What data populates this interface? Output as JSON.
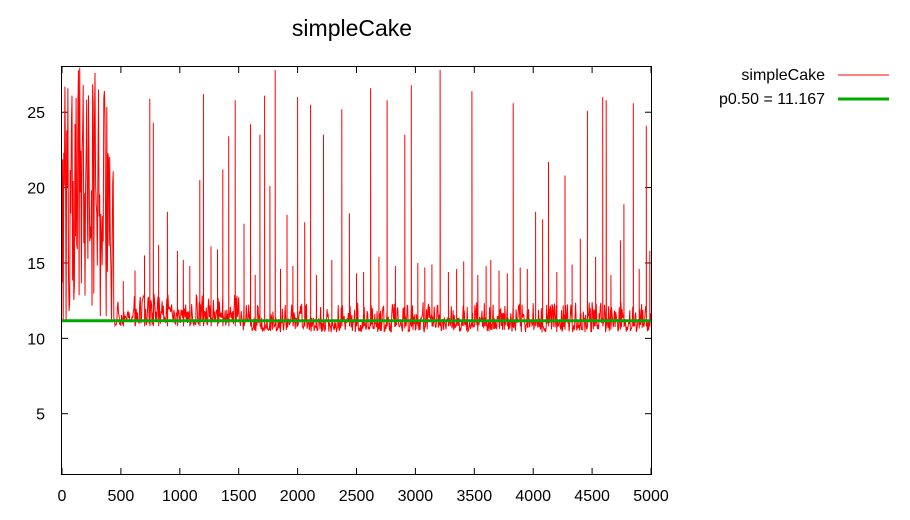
{
  "chart_data": {
    "type": "line",
    "title": "simpleCake",
    "xlabel": "",
    "ylabel": "",
    "xlim": [
      0,
      5000
    ],
    "ylim": [
      1,
      28
    ],
    "x_ticks": [
      0,
      500,
      1000,
      1500,
      2000,
      2500,
      3000,
      3500,
      4000,
      4500,
      5000
    ],
    "y_ticks": [
      5,
      10,
      15,
      20,
      25
    ],
    "grid": false,
    "legend_position": "outside-top-right",
    "series": [
      {
        "name": "simpleCake",
        "color": "#ff0000",
        "style": "noisy line",
        "base_segments": [
          {
            "x_start": 0,
            "x_end": 440,
            "low": 11,
            "high": 28
          },
          {
            "x_start": 440,
            "x_end": 1500,
            "low": 10.8,
            "high": 13
          },
          {
            "x_start": 1500,
            "x_end": 5000,
            "low": 10.4,
            "high": 12.4
          }
        ],
        "spikes": [
          {
            "x": 520,
            "y": 13.8
          },
          {
            "x": 620,
            "y": 14.5
          },
          {
            "x": 700,
            "y": 15.5
          },
          {
            "x": 745,
            "y": 25.9
          },
          {
            "x": 775,
            "y": 24.3
          },
          {
            "x": 820,
            "y": 16.2
          },
          {
            "x": 895,
            "y": 18.4
          },
          {
            "x": 980,
            "y": 15.8
          },
          {
            "x": 1030,
            "y": 15.2
          },
          {
            "x": 1085,
            "y": 14.8
          },
          {
            "x": 1170,
            "y": 20.5
          },
          {
            "x": 1200,
            "y": 26.2
          },
          {
            "x": 1265,
            "y": 16.1
          },
          {
            "x": 1320,
            "y": 15.9
          },
          {
            "x": 1365,
            "y": 21.2
          },
          {
            "x": 1415,
            "y": 23.4
          },
          {
            "x": 1470,
            "y": 25.8
          },
          {
            "x": 1545,
            "y": 17.6
          },
          {
            "x": 1600,
            "y": 24.2
          },
          {
            "x": 1640,
            "y": 14.2
          },
          {
            "x": 1680,
            "y": 23.5
          },
          {
            "x": 1720,
            "y": 26.1
          },
          {
            "x": 1765,
            "y": 20.1
          },
          {
            "x": 1810,
            "y": 27.8
          },
          {
            "x": 1855,
            "y": 14.6
          },
          {
            "x": 1910,
            "y": 18.2
          },
          {
            "x": 1960,
            "y": 14.8
          },
          {
            "x": 2000,
            "y": 26.0
          },
          {
            "x": 2060,
            "y": 17.7
          },
          {
            "x": 2110,
            "y": 25.5
          },
          {
            "x": 2160,
            "y": 14.2
          },
          {
            "x": 2220,
            "y": 23.5
          },
          {
            "x": 2290,
            "y": 15.2
          },
          {
            "x": 2375,
            "y": 25.2
          },
          {
            "x": 2440,
            "y": 18.3
          },
          {
            "x": 2500,
            "y": 14.3
          },
          {
            "x": 2560,
            "y": 14.4
          },
          {
            "x": 2620,
            "y": 26.6
          },
          {
            "x": 2690,
            "y": 15.4
          },
          {
            "x": 2760,
            "y": 25.8
          },
          {
            "x": 2830,
            "y": 14.8
          },
          {
            "x": 2910,
            "y": 23.5
          },
          {
            "x": 2965,
            "y": 26.8
          },
          {
            "x": 3020,
            "y": 15.0
          },
          {
            "x": 3080,
            "y": 14.7
          },
          {
            "x": 3140,
            "y": 14.9
          },
          {
            "x": 3210,
            "y": 27.8
          },
          {
            "x": 3280,
            "y": 14.4
          },
          {
            "x": 3350,
            "y": 14.6
          },
          {
            "x": 3410,
            "y": 15.1
          },
          {
            "x": 3480,
            "y": 26.4
          },
          {
            "x": 3530,
            "y": 14.2
          },
          {
            "x": 3600,
            "y": 14.8
          },
          {
            "x": 3640,
            "y": 15.2
          },
          {
            "x": 3710,
            "y": 14.5
          },
          {
            "x": 3780,
            "y": 14.3
          },
          {
            "x": 3830,
            "y": 25.6
          },
          {
            "x": 3890,
            "y": 14.7
          },
          {
            "x": 3950,
            "y": 14.6
          },
          {
            "x": 4020,
            "y": 18.4
          },
          {
            "x": 4080,
            "y": 17.9
          },
          {
            "x": 4130,
            "y": 21.7
          },
          {
            "x": 4200,
            "y": 14.4
          },
          {
            "x": 4270,
            "y": 20.8
          },
          {
            "x": 4330,
            "y": 14.9
          },
          {
            "x": 4400,
            "y": 16.6
          },
          {
            "x": 4460,
            "y": 25.1
          },
          {
            "x": 4530,
            "y": 15.4
          },
          {
            "x": 4590,
            "y": 26.0
          },
          {
            "x": 4620,
            "y": 25.8
          },
          {
            "x": 4660,
            "y": 14.2
          },
          {
            "x": 4740,
            "y": 16.5
          },
          {
            "x": 4770,
            "y": 18.9
          },
          {
            "x": 4850,
            "y": 25.6
          },
          {
            "x": 4900,
            "y": 14.6
          },
          {
            "x": 4960,
            "y": 24.1
          },
          {
            "x": 4990,
            "y": 15.8
          }
        ]
      },
      {
        "name": "p0.50 = 11.167",
        "color": "#00aa00",
        "style": "horizontal line",
        "y": 11.167
      }
    ]
  }
}
